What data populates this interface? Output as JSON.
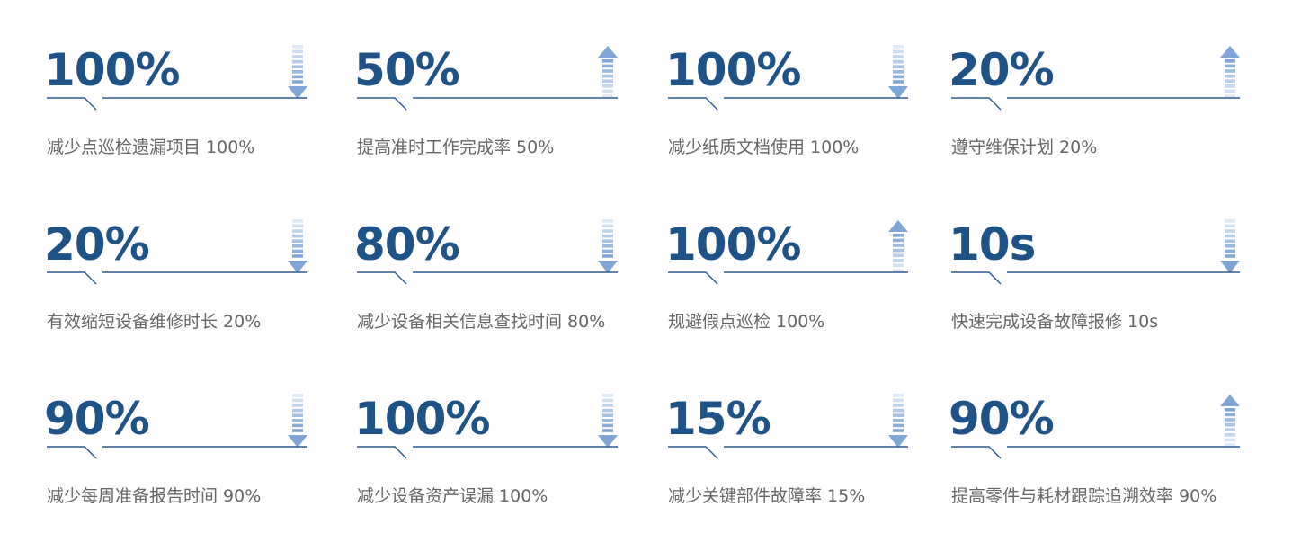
{
  "accent_color": "#1f5287",
  "arrow_color": "#7ea6d6",
  "cards": [
    {
      "value": "100%",
      "label": "减少点巡检遗漏项目 100%",
      "arrow": "arrow-down-icon"
    },
    {
      "value": "50%",
      "label": "提高准时工作完成率 50%",
      "arrow": "arrow-up-icon"
    },
    {
      "value": "100%",
      "label": "减少纸质文档使用 100%",
      "arrow": "arrow-down-icon"
    },
    {
      "value": "20%",
      "label": "遵守维保计划 20%",
      "arrow": "arrow-up-icon"
    },
    {
      "value": "20%",
      "label": "有效缩短设备维修时长 20%",
      "arrow": "arrow-down-icon"
    },
    {
      "value": "80%",
      "label": "减少设备相关信息查找时间 80%",
      "arrow": "arrow-down-icon"
    },
    {
      "value": "100%",
      "label": "规避假点巡检 100%",
      "arrow": "arrow-up-icon"
    },
    {
      "value": "10s",
      "label": "快速完成设备故障报修 10s",
      "arrow": "arrow-down-icon"
    },
    {
      "value": "90%",
      "label": "减少每周准备报告时间 90%",
      "arrow": "arrow-down-icon"
    },
    {
      "value": "100%",
      "label": "减少设备资产误漏 100%",
      "arrow": "arrow-down-icon"
    },
    {
      "value": "15%",
      "label": "减少关键部件故障率 15%",
      "arrow": "arrow-down-icon"
    },
    {
      "value": "90%",
      "label": "提高零件与耗材跟踪追溯效率 90%",
      "arrow": "arrow-up-icon"
    }
  ]
}
